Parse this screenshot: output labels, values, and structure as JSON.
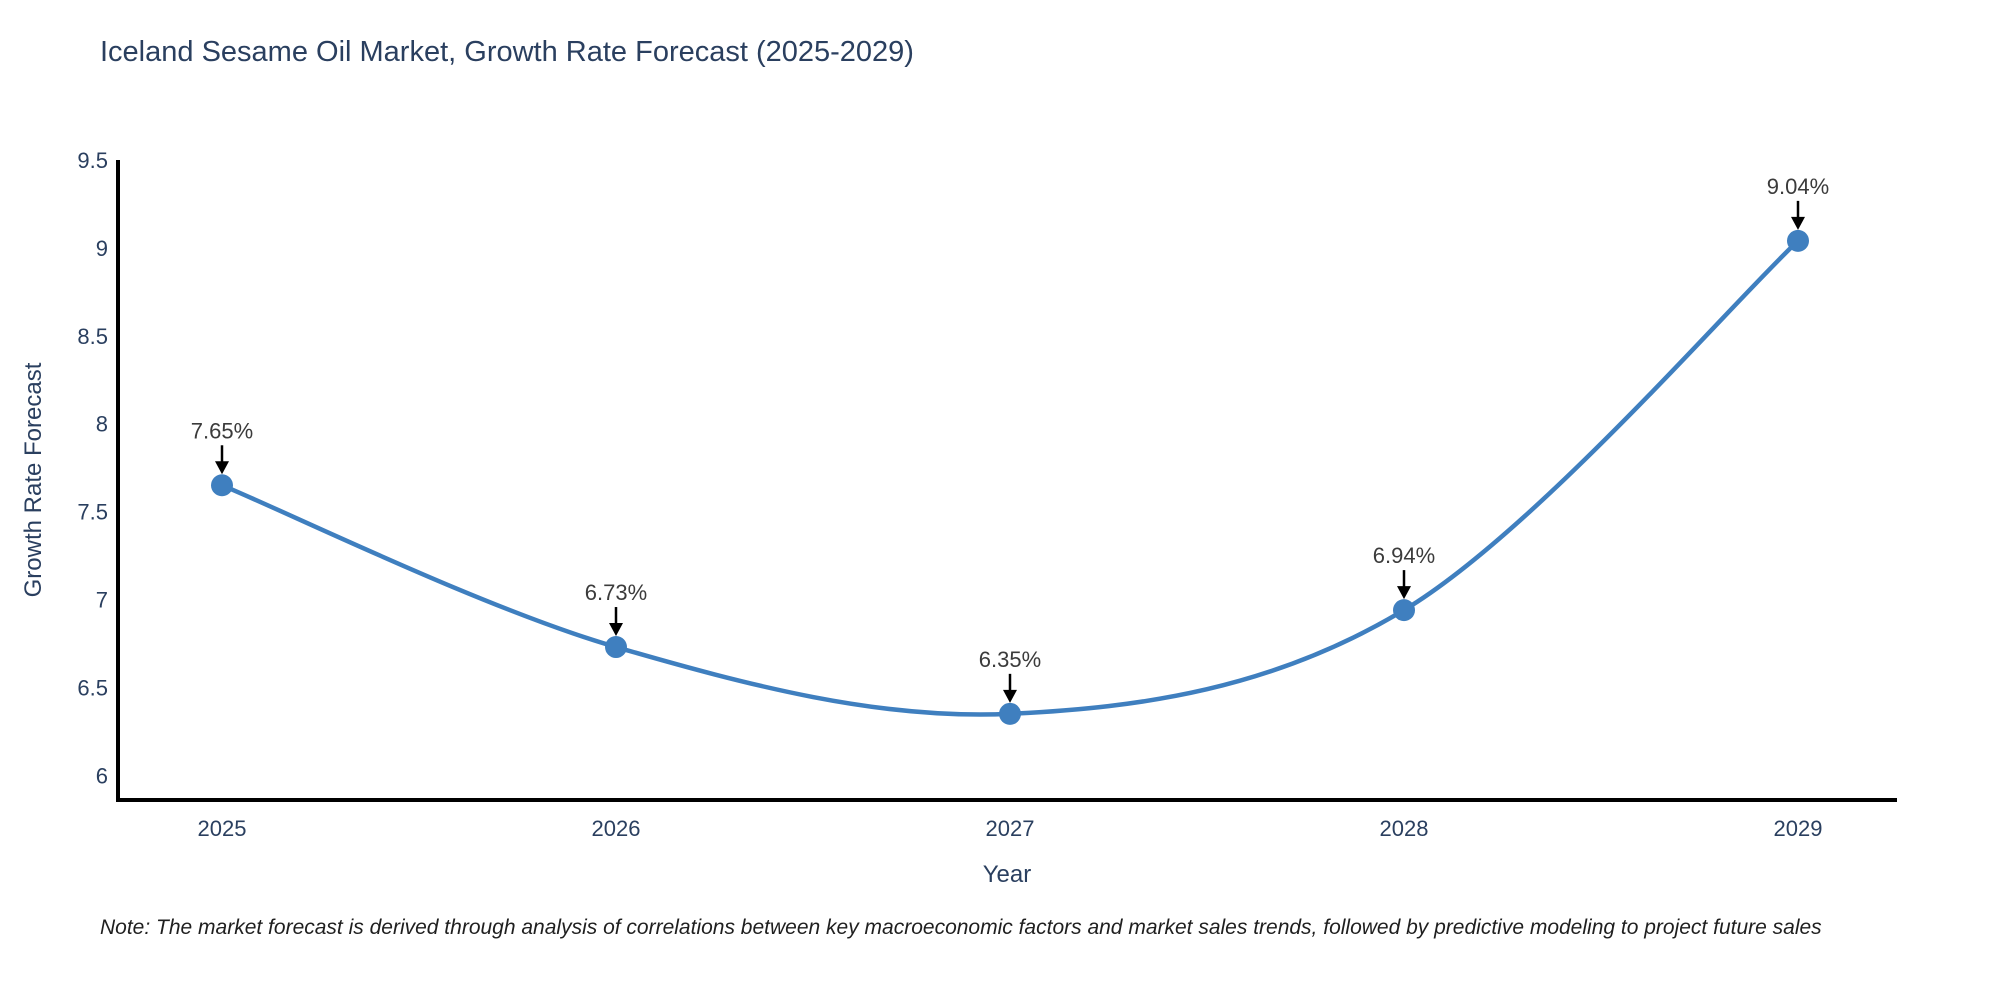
{
  "header": {
    "title": "Iceland Sesame Oil Market, Growth Rate Forecast (2025-2029)"
  },
  "chart_data": {
    "type": "line",
    "title": "Iceland Sesame Oil Market, Growth Rate Forecast (2025-2029)",
    "xlabel": "Year",
    "ylabel": "Growth Rate Forecast",
    "categories": [
      "2025",
      "2026",
      "2027",
      "2028",
      "2029"
    ],
    "values": [
      7.65,
      6.73,
      6.35,
      6.94,
      9.04
    ],
    "point_labels": [
      "7.65%",
      "6.73%",
      "6.35%",
      "6.94%",
      "9.04%"
    ],
    "yticks": [
      6,
      6.5,
      7,
      7.5,
      8,
      8.5,
      9,
      9.5
    ],
    "ylim": [
      5.86,
      9.5
    ],
    "grid": false,
    "legend": false,
    "line_shape": "spline",
    "line_color": "#3f7fbf",
    "marker_color": "#3f7fbf",
    "axis_color": "#000000",
    "annotation_color": "#3b3b3b",
    "text_color": "#2a3f5f"
  },
  "footer": {
    "note": "Note: The market forecast is derived through analysis of correlations between key macroeconomic factors and market sales trends, followed by predictive modeling to project future sales"
  }
}
